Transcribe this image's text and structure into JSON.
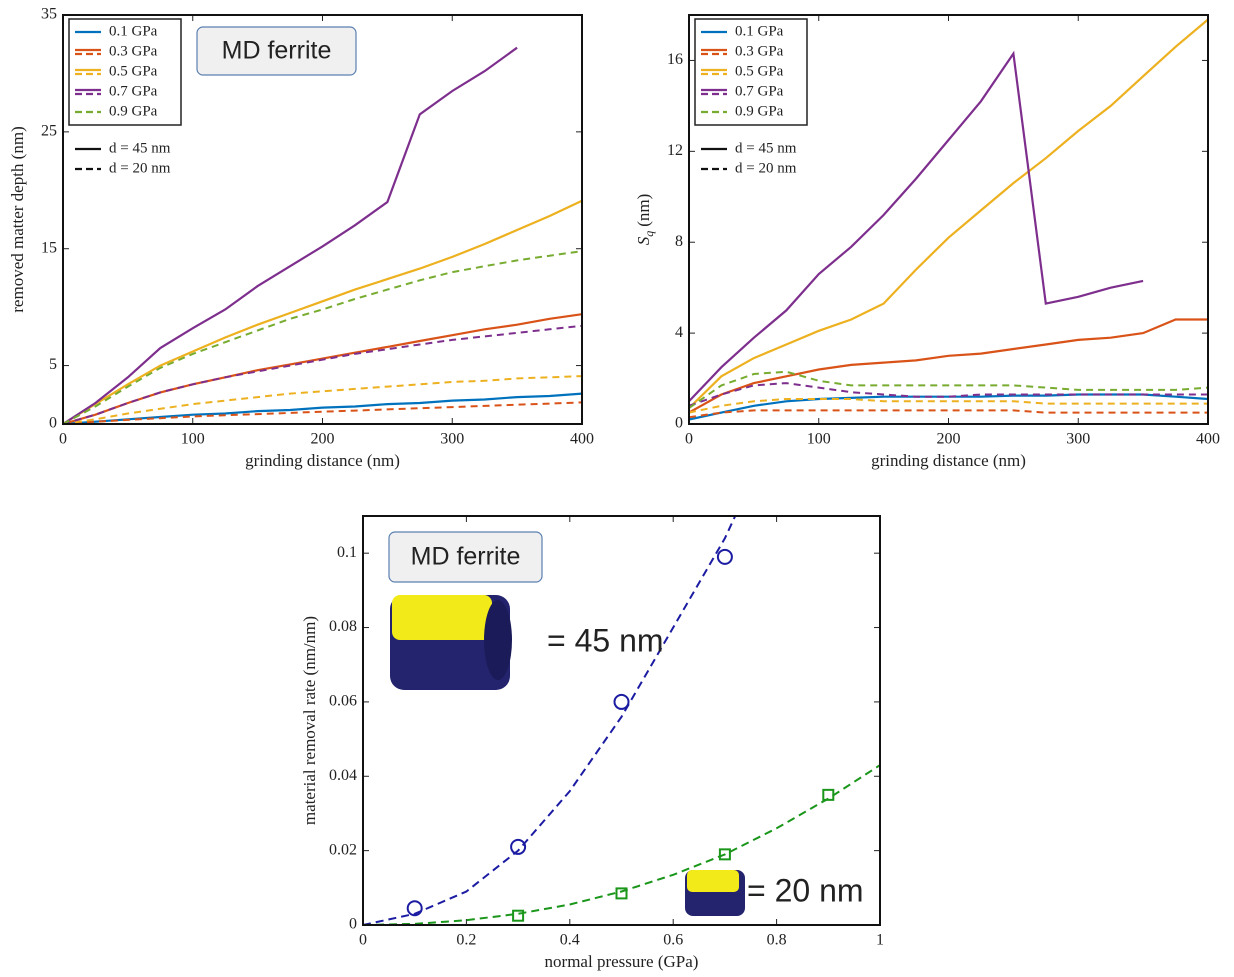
{
  "chart_data": [
    {
      "type": "line",
      "xlabel": "grinding distance (nm)",
      "ylabel": "removed matter depth (nm)",
      "annotation": "MD ferrite",
      "xlim": [
        0,
        400
      ],
      "ylim": [
        0,
        35
      ],
      "xticks": [
        0,
        100,
        200,
        300,
        400
      ],
      "yticks": [
        0,
        5,
        15,
        25,
        35
      ],
      "x": [
        0,
        25,
        50,
        75,
        100,
        125,
        150,
        175,
        200,
        225,
        250,
        275,
        300,
        325,
        350,
        375,
        400
      ],
      "styles": [
        "d = 45 nm",
        "d = 20 nm"
      ],
      "series": [
        {
          "name": "0.1 GPa",
          "color": "#0072bd",
          "values": [
            0,
            0.2,
            0.4,
            0.6,
            0.8,
            0.9,
            1.1,
            1.2,
            1.4,
            1.5,
            1.7,
            1.8,
            2,
            2.1,
            2.3,
            2.4,
            2.6
          ]
        },
        {
          "name": "0.3 GPa",
          "color": "#d95319",
          "values": [
            0,
            0.8,
            1.8,
            2.7,
            3.4,
            4,
            4.6,
            5.1,
            5.6,
            6.1,
            6.6,
            7.1,
            7.6,
            8.1,
            8.5,
            9,
            9.4
          ],
          "dashed_values": [
            0,
            0.2,
            0.35,
            0.5,
            0.65,
            0.75,
            0.85,
            0.95,
            1.05,
            1.15,
            1.25,
            1.35,
            1.45,
            1.55,
            1.65,
            1.75,
            1.85
          ]
        },
        {
          "name": "0.5 GPa",
          "color": "#edb120",
          "values": [
            0,
            1.7,
            3.4,
            5,
            6.2,
            7.4,
            8.5,
            9.5,
            10.5,
            11.5,
            12.4,
            13.3,
            14.3,
            15.4,
            16.6,
            17.8,
            19.1
          ],
          "dashed_values": [
            0,
            0.4,
            0.9,
            1.3,
            1.7,
            2,
            2.3,
            2.6,
            2.8,
            3,
            3.2,
            3.4,
            3.6,
            3.7,
            3.9,
            4,
            4.1
          ]
        },
        {
          "name": "0.7 GPa",
          "color": "#7e2f8e",
          "values": [
            0,
            1.8,
            4,
            6.5,
            8.2,
            9.8,
            11.8,
            13.5,
            15.2,
            17,
            19,
            26.5,
            28.5,
            30.2,
            32.2,
            null,
            null
          ],
          "dashed_values": [
            0,
            0.8,
            1.8,
            2.7,
            3.4,
            4,
            4.5,
            5,
            5.5,
            6,
            6.4,
            6.8,
            7.2,
            7.5,
            7.8,
            8.1,
            8.4
          ]
        },
        {
          "name": "0.9 GPa",
          "color": "#77ac30",
          "dashed_values": [
            0,
            1.5,
            3.2,
            4.8,
            6,
            7,
            8,
            9,
            9.8,
            10.7,
            11.5,
            12.3,
            13,
            13.5,
            14,
            14.4,
            14.8
          ]
        }
      ]
    },
    {
      "type": "line",
      "xlabel": "grinding distance (nm)",
      "ylabel": {
        "main": "S",
        "sub": "q",
        "unit": "(nm)"
      },
      "xlim": [
        0,
        400
      ],
      "ylim": [
        0,
        18
      ],
      "xticks": [
        0,
        100,
        200,
        300,
        400
      ],
      "yticks": [
        0,
        4,
        8,
        12,
        16
      ],
      "x": [
        0,
        25,
        50,
        75,
        100,
        125,
        150,
        175,
        200,
        225,
        250,
        275,
        300,
        325,
        350,
        375,
        400
      ],
      "styles": [
        "d = 45 nm",
        "d = 20 nm"
      ],
      "series": [
        {
          "name": "0.1 GPa",
          "color": "#0072bd",
          "values": [
            0.2,
            0.5,
            0.8,
            1,
            1.1,
            1.15,
            1.2,
            1.2,
            1.2,
            1.2,
            1.25,
            1.25,
            1.3,
            1.3,
            1.3,
            1.2,
            1.1
          ]
        },
        {
          "name": "0.3 GPa",
          "color": "#d95319",
          "values": [
            0.5,
            1.3,
            1.8,
            2.1,
            2.4,
            2.6,
            2.7,
            2.8,
            3,
            3.1,
            3.3,
            3.5,
            3.7,
            3.8,
            4,
            4.6,
            4.6
          ],
          "dashed_values": [
            0.3,
            0.5,
            0.6,
            0.6,
            0.6,
            0.6,
            0.6,
            0.6,
            0.6,
            0.6,
            0.6,
            0.5,
            0.5,
            0.5,
            0.5,
            0.5,
            0.5
          ]
        },
        {
          "name": "0.5 GPa",
          "color": "#edb120",
          "values": [
            0.7,
            2.1,
            2.9,
            3.5,
            4.1,
            4.6,
            5.3,
            6.8,
            8.2,
            9.4,
            10.6,
            11.7,
            12.9,
            14,
            15.3,
            16.6,
            17.8
          ],
          "dashed_values": [
            0.5,
            0.8,
            1,
            1.1,
            1.1,
            1.1,
            1,
            1,
            1,
            1,
            1,
            0.9,
            0.9,
            0.9,
            0.9,
            0.9,
            0.9
          ]
        },
        {
          "name": "0.7 GPa",
          "color": "#7e2f8e",
          "values": [
            1,
            2.5,
            3.8,
            5,
            6.6,
            7.8,
            9.2,
            10.8,
            12.5,
            14.2,
            16.3,
            5.3,
            5.6,
            6,
            6.3,
            null,
            null
          ],
          "dashed_values": [
            0.8,
            1.3,
            1.7,
            1.8,
            1.6,
            1.4,
            1.3,
            1.2,
            1.2,
            1.3,
            1.3,
            1.3,
            1.3,
            1.3,
            1.3,
            1.3,
            1.3
          ]
        },
        {
          "name": "0.9 GPa",
          "color": "#77ac30",
          "dashed_values": [
            0.7,
            1.7,
            2.2,
            2.3,
            1.9,
            1.7,
            1.7,
            1.7,
            1.7,
            1.7,
            1.7,
            1.6,
            1.5,
            1.5,
            1.5,
            1.5,
            1.6
          ]
        }
      ]
    },
    {
      "type": "scatter",
      "xlabel": "normal pressure (GPa)",
      "ylabel": "material removal rate (nm/nm)",
      "annotation": "MD ferrite",
      "xlim": [
        0,
        1
      ],
      "ylim": [
        0,
        0.11
      ],
      "xticks": [
        0,
        0.2,
        0.4,
        0.6,
        0.8,
        1
      ],
      "yticks": [
        0,
        0.02,
        0.04,
        0.06,
        0.08,
        0.1
      ],
      "series": [
        {
          "name": "= 45 nm",
          "color": "#1c1ca3",
          "marker": "circle",
          "x": [
            0.1,
            0.3,
            0.5,
            0.7
          ],
          "values": [
            0.0045,
            0.021,
            0.06,
            0.099
          ],
          "fit_x": [
            0,
            0.1,
            0.2,
            0.3,
            0.4,
            0.5,
            0.6,
            0.7,
            0.72
          ],
          "fit_values": [
            0,
            0.003,
            0.009,
            0.02,
            0.036,
            0.056,
            0.08,
            0.104,
            0.11
          ]
        },
        {
          "name": "= 20 nm",
          "color": "#1a961a",
          "marker": "square",
          "x": [
            0.3,
            0.5,
            0.7,
            0.9
          ],
          "values": [
            0.0025,
            0.0085,
            0.019,
            0.035
          ],
          "fit_x": [
            0,
            0.1,
            0.2,
            0.3,
            0.4,
            0.5,
            0.6,
            0.7,
            0.8,
            0.9,
            1
          ],
          "fit_values": [
            0,
            0.0003,
            0.0013,
            0.003,
            0.0055,
            0.009,
            0.0135,
            0.019,
            0.026,
            0.034,
            0.043
          ]
        }
      ]
    }
  ]
}
